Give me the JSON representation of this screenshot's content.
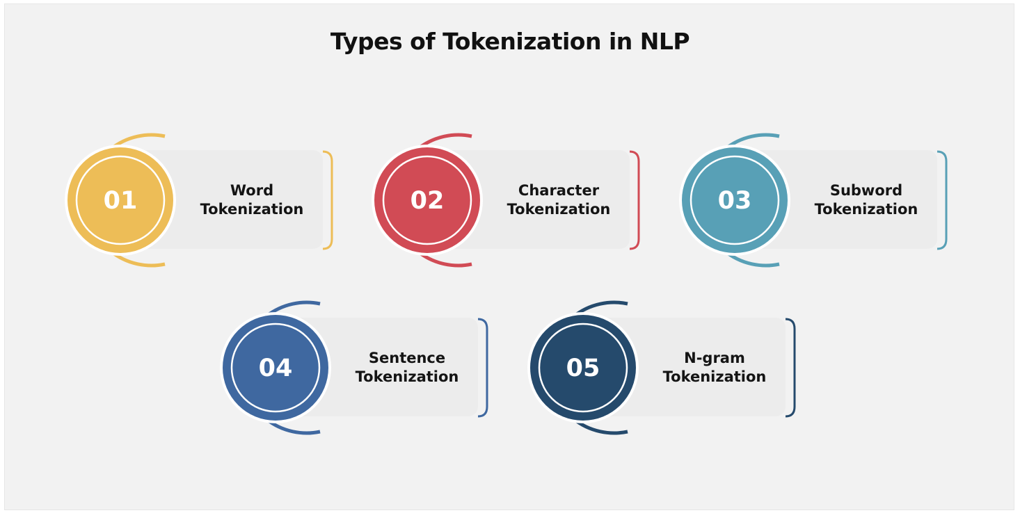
{
  "title": "Types of Tokenization in NLP",
  "items": [
    {
      "number": "01",
      "line1": "Word",
      "line2": "Tokenization",
      "color": "#EDBD57"
    },
    {
      "number": "02",
      "line1": "Character",
      "line2": "Tokenization",
      "color": "#D14B55"
    },
    {
      "number": "03",
      "line1": "Subword",
      "line2": "Tokenization",
      "color": "#58A0B6"
    },
    {
      "number": "04",
      "line1": "Sentence",
      "line2": "Tokenization",
      "color": "#3F68A0"
    },
    {
      "number": "05",
      "line1": "N-gram",
      "line2": "Tokenization",
      "color": "#254A6C"
    }
  ]
}
